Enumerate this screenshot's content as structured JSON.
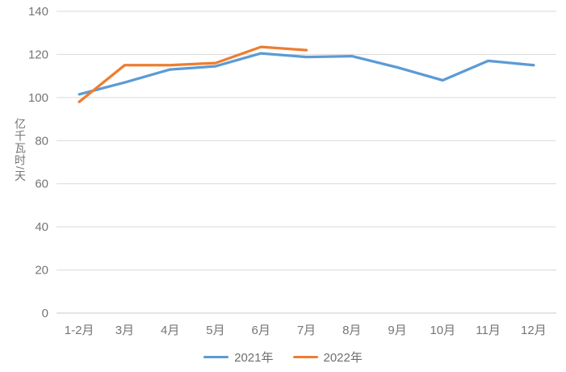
{
  "chart_data": {
    "type": "line",
    "title": "",
    "categories": [
      "1-2月",
      "3月",
      "4月",
      "5月",
      "6月",
      "7月",
      "8月",
      "9月",
      "10月",
      "11月",
      "12月"
    ],
    "series": [
      {
        "name": "2021年",
        "color": "#5B9BD5",
        "values": [
          101.5,
          107,
          113,
          114.5,
          120.5,
          118.8,
          119.2,
          114,
          108,
          117,
          115
        ]
      },
      {
        "name": "2022年",
        "color": "#ED7D31",
        "values": [
          98,
          115,
          115,
          116,
          123.5,
          122
        ]
      }
    ],
    "xlabel": "",
    "ylabel": "亿千瓦时/天",
    "ylim": [
      0,
      140
    ],
    "yticks": [
      0,
      20,
      40,
      60,
      80,
      100,
      120,
      140
    ],
    "grid": true,
    "grid_color": "#D9D9D9",
    "axis_line_color": "#C9C9C9",
    "tick_label_color": "#757575",
    "legend_position": "bottom"
  }
}
